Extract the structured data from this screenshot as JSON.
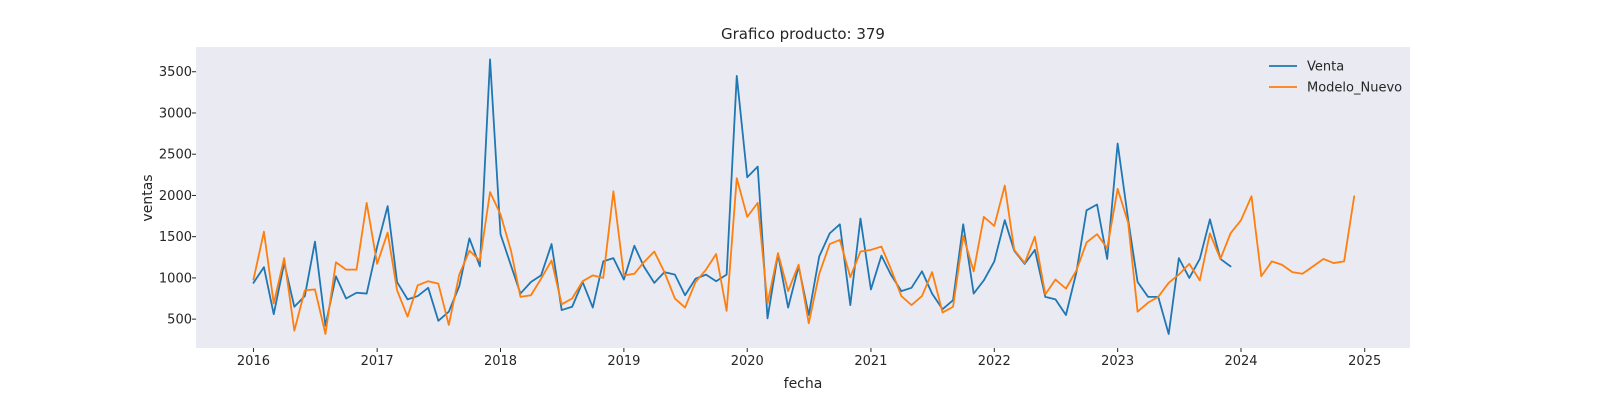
{
  "chart_data": {
    "type": "line",
    "title": "Grafico producto: 379",
    "xlabel": "fecha",
    "ylabel": "ventas",
    "xlim": [
      "2015-07-15",
      "2025-05-15"
    ],
    "ylim": [
      150,
      3800
    ],
    "x_ticks": [
      "2016",
      "2017",
      "2018",
      "2019",
      "2020",
      "2021",
      "2022",
      "2023",
      "2024",
      "2025"
    ],
    "y_ticks": [
      500,
      1000,
      1500,
      2000,
      2500,
      3000,
      3500
    ],
    "grid": false,
    "legend_position": "top-right",
    "colors": {
      "background": "#eaeaf2",
      "Venta": "#1f77b4",
      "Modelo_Nuevo": "#ff7f0e"
    },
    "series": [
      {
        "name": "Venta",
        "start": "2016-01",
        "values": [
          940,
          1130,
          560,
          1180,
          650,
          780,
          1440,
          420,
          1020,
          750,
          820,
          810,
          1380,
          1870,
          950,
          740,
          780,
          880,
          480,
          590,
          900,
          1480,
          1140,
          3650,
          1530,
          1150,
          810,
          950,
          1030,
          1410,
          610,
          650,
          950,
          640,
          1200,
          1240,
          980,
          1390,
          1140,
          940,
          1070,
          1040,
          790,
          990,
          1040,
          960,
          1040,
          3450,
          2220,
          2350,
          510,
          1290,
          640,
          1140,
          550,
          1260,
          1540,
          1650,
          670,
          1720,
          860,
          1270,
          1040,
          840,
          880,
          1080,
          810,
          620,
          730,
          1650,
          810,
          970,
          1200,
          1700,
          1330,
          1170,
          1340,
          770,
          740,
          550,
          1070,
          1820,
          1890,
          1230,
          2630,
          1710,
          950,
          770,
          770,
          320,
          1240,
          1000,
          1230,
          1710,
          1230,
          1140
        ]
      },
      {
        "name": "Modelo_Nuevo",
        "start": "2016-01",
        "values": [
          980,
          1560,
          690,
          1240,
          360,
          850,
          860,
          320,
          1190,
          1100,
          1100,
          1910,
          1170,
          1550,
          850,
          530,
          910,
          960,
          930,
          430,
          1040,
          1330,
          1210,
          2040,
          1770,
          1330,
          770,
          790,
          990,
          1210,
          680,
          750,
          960,
          1030,
          1000,
          2050,
          1030,
          1050,
          1190,
          1320,
          1070,
          750,
          640,
          950,
          1100,
          1290,
          600,
          2210,
          1740,
          1910,
          690,
          1300,
          840,
          1160,
          450,
          1050,
          1410,
          1460,
          1010,
          1320,
          1340,
          1380,
          1110,
          780,
          670,
          780,
          1070,
          580,
          650,
          1510,
          1080,
          1740,
          1630,
          2120,
          1340,
          1180,
          1500,
          800,
          980,
          870,
          1090,
          1430,
          1530,
          1360,
          2080,
          1670,
          590,
          700,
          770,
          940,
          1040,
          1170,
          970,
          1540,
          1230,
          1540,
          1700,
          1990,
          1020,
          1200,
          1160,
          1070,
          1050,
          1140,
          1230,
          1180,
          1200,
          1990
        ]
      }
    ]
  }
}
